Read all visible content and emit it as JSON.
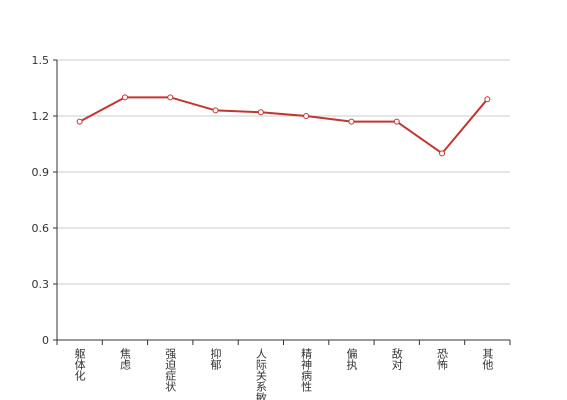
{
  "chart_data": {
    "type": "line",
    "categories": [
      "躯体化",
      "焦虑",
      "强迫症状",
      "抑郁",
      "人际关系敏感",
      "精神病性",
      "偏执",
      "敌对",
      "恐怖",
      "其他"
    ],
    "values": [
      1.17,
      1.3,
      1.3,
      1.23,
      1.22,
      1.2,
      1.17,
      1.17,
      1.0,
      1.29
    ],
    "color": "#c23531",
    "ylim": [
      0,
      1.5
    ],
    "yticks": [
      0,
      0.3,
      0.6,
      0.9,
      1.2,
      1.5
    ],
    "grid": true
  }
}
